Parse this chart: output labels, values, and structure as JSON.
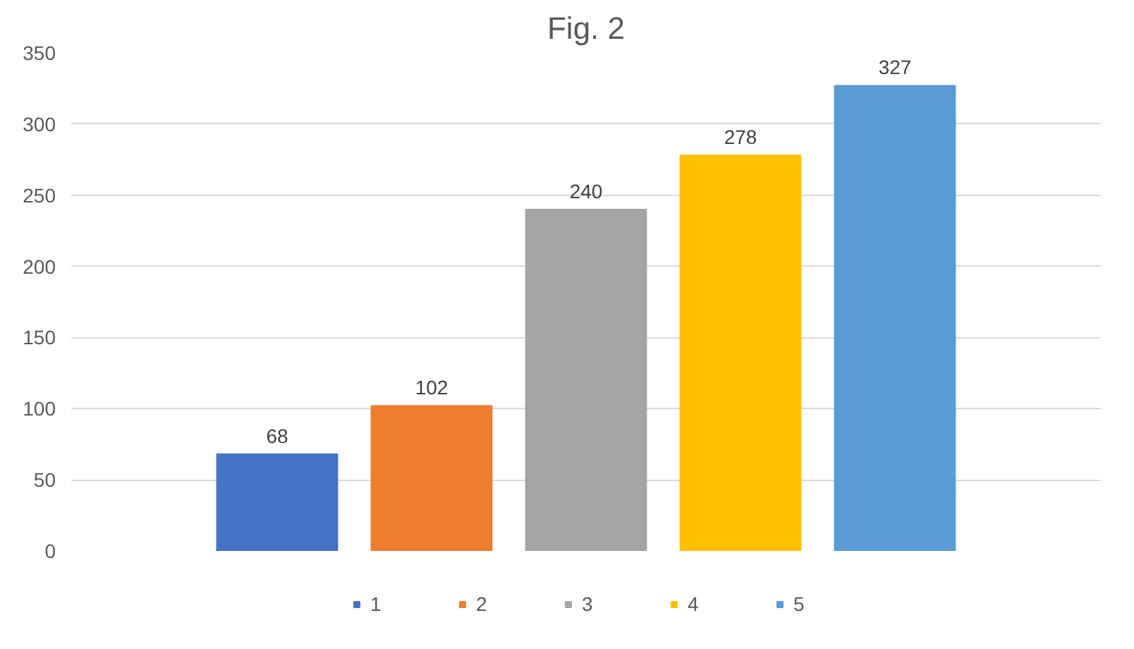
{
  "chart_data": {
    "type": "bar",
    "title": "Fig. 2",
    "categories": [
      null
    ],
    "series": [
      {
        "name": "1",
        "color": "#4472c4",
        "values": [
          68
        ]
      },
      {
        "name": "2",
        "color": "#ed7d31",
        "values": [
          102
        ]
      },
      {
        "name": "3",
        "color": "#a5a5a5",
        "values": [
          240
        ]
      },
      {
        "name": "4",
        "color": "#ffc000",
        "values": [
          278
        ]
      },
      {
        "name": "5",
        "color": "#5b9bd5",
        "values": [
          327
        ]
      }
    ],
    "ylim": [
      0,
      350
    ],
    "yticks": [
      0,
      50,
      100,
      150,
      200,
      250,
      300,
      350
    ],
    "grid": "y",
    "legend": "bottom",
    "data_labels": true
  }
}
